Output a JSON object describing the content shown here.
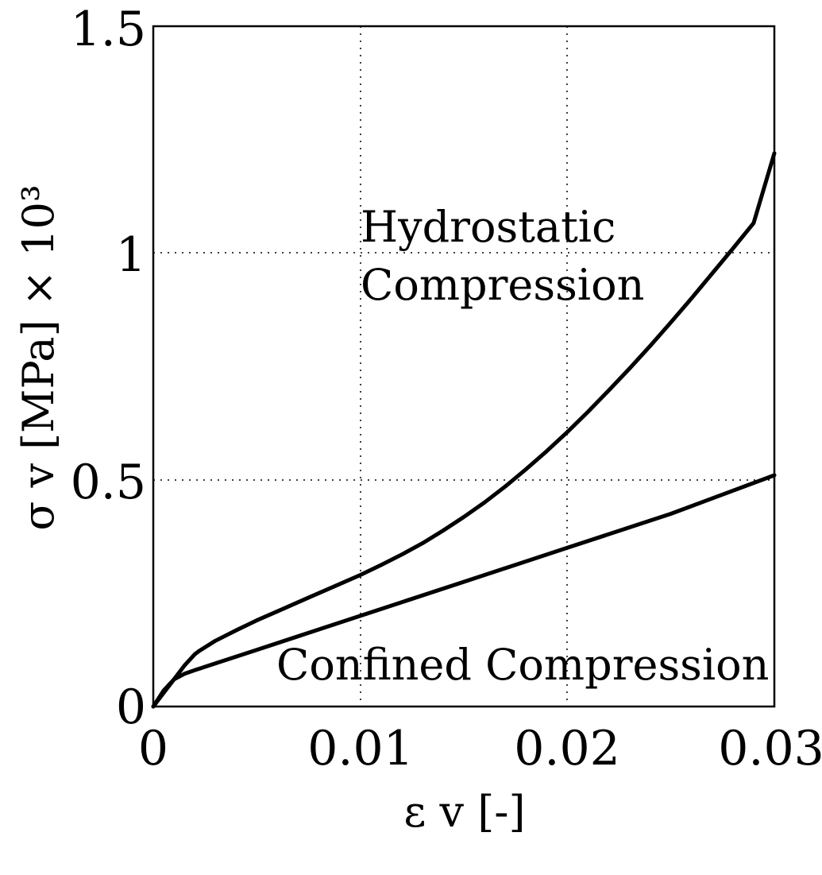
{
  "chart_data": {
    "type": "line",
    "xlabel": "ε v  [-]",
    "ylabel": "σ v  [MPa]  × 10³",
    "xlim": [
      0,
      0.03
    ],
    "ylim": [
      0,
      1.5
    ],
    "grid": true,
    "x_ticks": [
      "0",
      "0.01",
      "0.02",
      "0.03"
    ],
    "y_ticks": [
      "0",
      "0.5",
      "1",
      "1.5"
    ],
    "series": [
      {
        "name": "Hydrostatic Compression",
        "x": [
          0,
          0.0005,
          0.001,
          0.0015,
          0.002,
          0.0022,
          0.003,
          0.004,
          0.005,
          0.006,
          0.007,
          0.008,
          0.009,
          0.01,
          0.011,
          0.012,
          0.013,
          0.014,
          0.015,
          0.016,
          0.017,
          0.018,
          0.019,
          0.02,
          0.021,
          0.022,
          0.023,
          0.024,
          0.025,
          0.026,
          0.027,
          0.028,
          0.029,
          0.03
        ],
        "y": [
          0,
          0.03,
          0.06,
          0.09,
          0.115,
          0.122,
          0.145,
          0.168,
          0.19,
          0.21,
          0.23,
          0.25,
          0.27,
          0.29,
          0.312,
          0.335,
          0.36,
          0.388,
          0.418,
          0.45,
          0.485,
          0.523,
          0.563,
          0.605,
          0.65,
          0.697,
          0.745,
          0.795,
          0.847,
          0.9,
          0.955,
          1.01,
          1.066,
          1.22
        ]
      },
      {
        "name": "Confined Compression",
        "x": [
          0,
          0.0005,
          0.001,
          0.0015,
          0.002,
          0.003,
          0.005,
          0.01,
          0.015,
          0.02,
          0.025,
          0.03
        ],
        "y": [
          0,
          0.035,
          0.06,
          0.072,
          0.08,
          0.095,
          0.125,
          0.2,
          0.275,
          0.35,
          0.425,
          0.51
        ]
      }
    ],
    "annotations": [
      {
        "text": "Hydrostatic",
        "x": 0.0,
        "y": 0.0
      },
      {
        "text": "Compression",
        "x": 0.0,
        "y": 0.0
      },
      {
        "text": "Confined Compression",
        "x": 0.0,
        "y": 0.0
      }
    ]
  }
}
